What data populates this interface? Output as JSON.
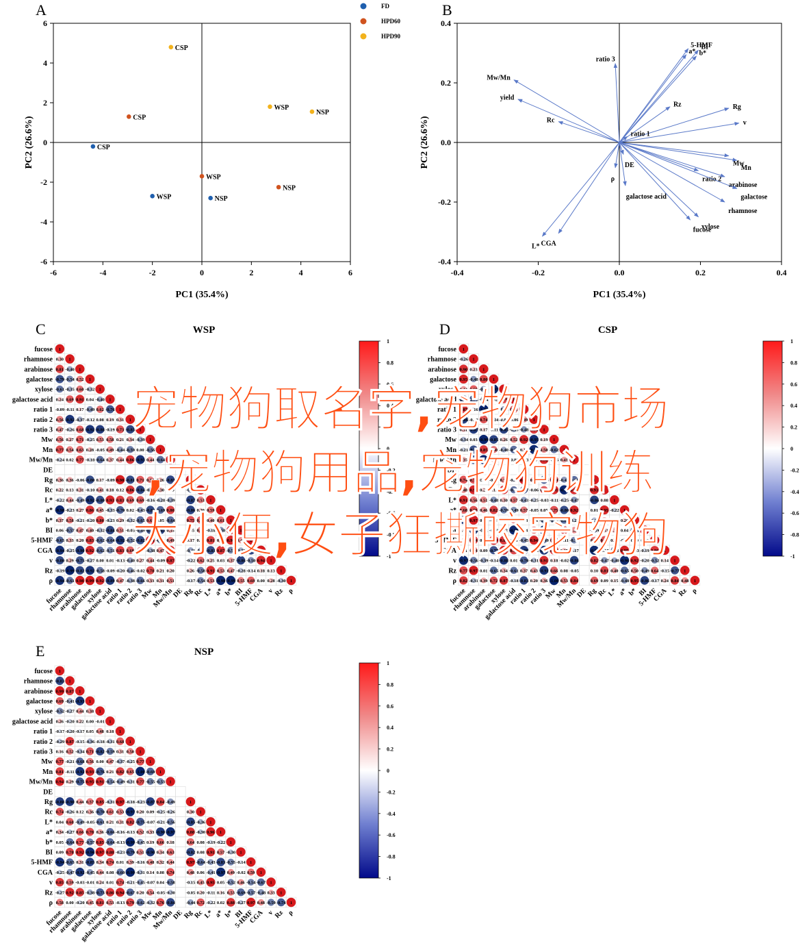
{
  "panels": {
    "A": {
      "letter": "A",
      "chart_data": {
        "type": "scatter",
        "xlabel": "PC1 (35.4%)",
        "ylabel": "PC2 (26.6%)",
        "xlim": [
          -6,
          6
        ],
        "ylim": [
          -6,
          6
        ],
        "xticks": [
          "-6",
          "-4",
          "-2",
          "0",
          "2",
          "4",
          "6"
        ],
        "yticks": [
          "6",
          "4",
          "2",
          "0",
          "-2",
          "-4",
          "-6"
        ],
        "legend_position": "top-right",
        "series": [
          {
            "name": "FD",
            "color": "#1f5fae",
            "points": [
              {
                "x": -4.4,
                "y": -0.2,
                "label": "CSP"
              },
              {
                "x": -2.0,
                "y": -2.7,
                "label": "WSP"
              },
              {
                "x": 0.35,
                "y": -2.8,
                "label": "NSP"
              }
            ]
          },
          {
            "name": "HPD60",
            "color": "#d0531f",
            "points": [
              {
                "x": -2.95,
                "y": 1.3,
                "label": "CSP"
              },
              {
                "x": 0.0,
                "y": -1.7,
                "label": "WSP"
              },
              {
                "x": 3.1,
                "y": -2.25,
                "label": "NSP"
              }
            ]
          },
          {
            "name": "HPD90",
            "color": "#f2b21c",
            "points": [
              {
                "x": -1.25,
                "y": 4.8,
                "label": "CSP"
              },
              {
                "x": 2.75,
                "y": 1.8,
                "label": "WSP"
              },
              {
                "x": 4.45,
                "y": 1.55,
                "label": "NSP"
              }
            ]
          }
        ]
      }
    },
    "B": {
      "letter": "B",
      "chart_data": {
        "type": "biplot",
        "xlabel": "PC1 (35.4%)",
        "ylabel": "PC2 (26.6%)",
        "xlim": [
          -0.4,
          0.4
        ],
        "ylim": [
          -0.4,
          0.4
        ],
        "xticks": [
          "-0.4",
          "-0.2",
          "0.0",
          "0.2",
          "0.4"
        ],
        "yticks": [
          "0.4",
          "0.2",
          "0.0",
          "-0.2",
          "-0.4"
        ],
        "arrow_color": "#5a79c8",
        "vectors": [
          {
            "label": "Mw/Mn",
            "x": -0.26,
            "y": 0.21
          },
          {
            "label": "yield",
            "x": -0.25,
            "y": 0.145
          },
          {
            "label": "Rc",
            "x": -0.15,
            "y": 0.07
          },
          {
            "label": "ratio 3",
            "x": -0.01,
            "y": 0.265
          },
          {
            "label": "5-HMF",
            "x": 0.17,
            "y": 0.315
          },
          {
            "label": "a*",
            "x": 0.165,
            "y": 0.295
          },
          {
            "label": "BI",
            "x": 0.195,
            "y": 0.31
          },
          {
            "label": "b*",
            "x": 0.19,
            "y": 0.29
          },
          {
            "label": "Rz",
            "x": 0.125,
            "y": 0.12
          },
          {
            "label": "Rg",
            "x": 0.27,
            "y": 0.115
          },
          {
            "label": "v",
            "x": 0.295,
            "y": 0.065
          },
          {
            "label": "ratio 1",
            "x": 0.02,
            "y": 0.02
          },
          {
            "label": "DE",
            "x": 0.01,
            "y": -0.04
          },
          {
            "label": "ρ",
            "x": -0.01,
            "y": -0.085
          },
          {
            "label": "Mw",
            "x": 0.27,
            "y": -0.045
          },
          {
            "label": "Mn",
            "x": 0.29,
            "y": -0.06
          },
          {
            "label": "ratio 2",
            "x": 0.195,
            "y": -0.095
          },
          {
            "label": "arabinose",
            "x": 0.26,
            "y": -0.115
          },
          {
            "label": "galactose",
            "x": 0.29,
            "y": -0.155
          },
          {
            "label": "galactose acid",
            "x": 0.015,
            "y": -0.145
          },
          {
            "label": "rhamnose",
            "x": 0.26,
            "y": -0.2
          },
          {
            "label": "xylose",
            "x": 0.195,
            "y": -0.25
          },
          {
            "label": "fucose",
            "x": 0.175,
            "y": -0.26
          },
          {
            "label": "L*",
            "x": -0.19,
            "y": -0.315
          },
          {
            "label": "CGA",
            "x": -0.15,
            "y": -0.305
          }
        ]
      }
    },
    "C": {
      "letter": "C",
      "title": "WSP",
      "seed": 11
    },
    "D": {
      "letter": "D",
      "title": "CSP",
      "seed": 29
    },
    "E": {
      "letter": "E",
      "title": "NSP",
      "seed": 47
    },
    "matrix_variables": [
      "fucose",
      "rhamnose",
      "arabinose",
      "galactose",
      "xylose",
      "galactose acid",
      "ratio 1",
      "ratio 2",
      "ratio 3",
      "Mw",
      "Mn",
      "Mw/Mn",
      "DE",
      "Rg",
      "Rc",
      "L*",
      "a*",
      "b*",
      "BI",
      "5-HMF",
      "CGA",
      "v",
      "Rz",
      "ρ"
    ],
    "colorbar_ticks": [
      "1",
      "0.8",
      "0.6",
      "0.4",
      "0.2",
      "0",
      "-0.2",
      "-0.4",
      "-0.6",
      "-0.8",
      "-1"
    ],
    "colors": {
      "positive": "#d7191c",
      "neutral": "#ffffff",
      "negative": "#08246e"
    },
    "overlay": {
      "line1": "宠物狗取名字,宠物狗市场",
      "line2": ",宠物狗用品,宠物狗训练",
      "line3": "大小便,女子狂撕咬宠物狗"
    }
  }
}
